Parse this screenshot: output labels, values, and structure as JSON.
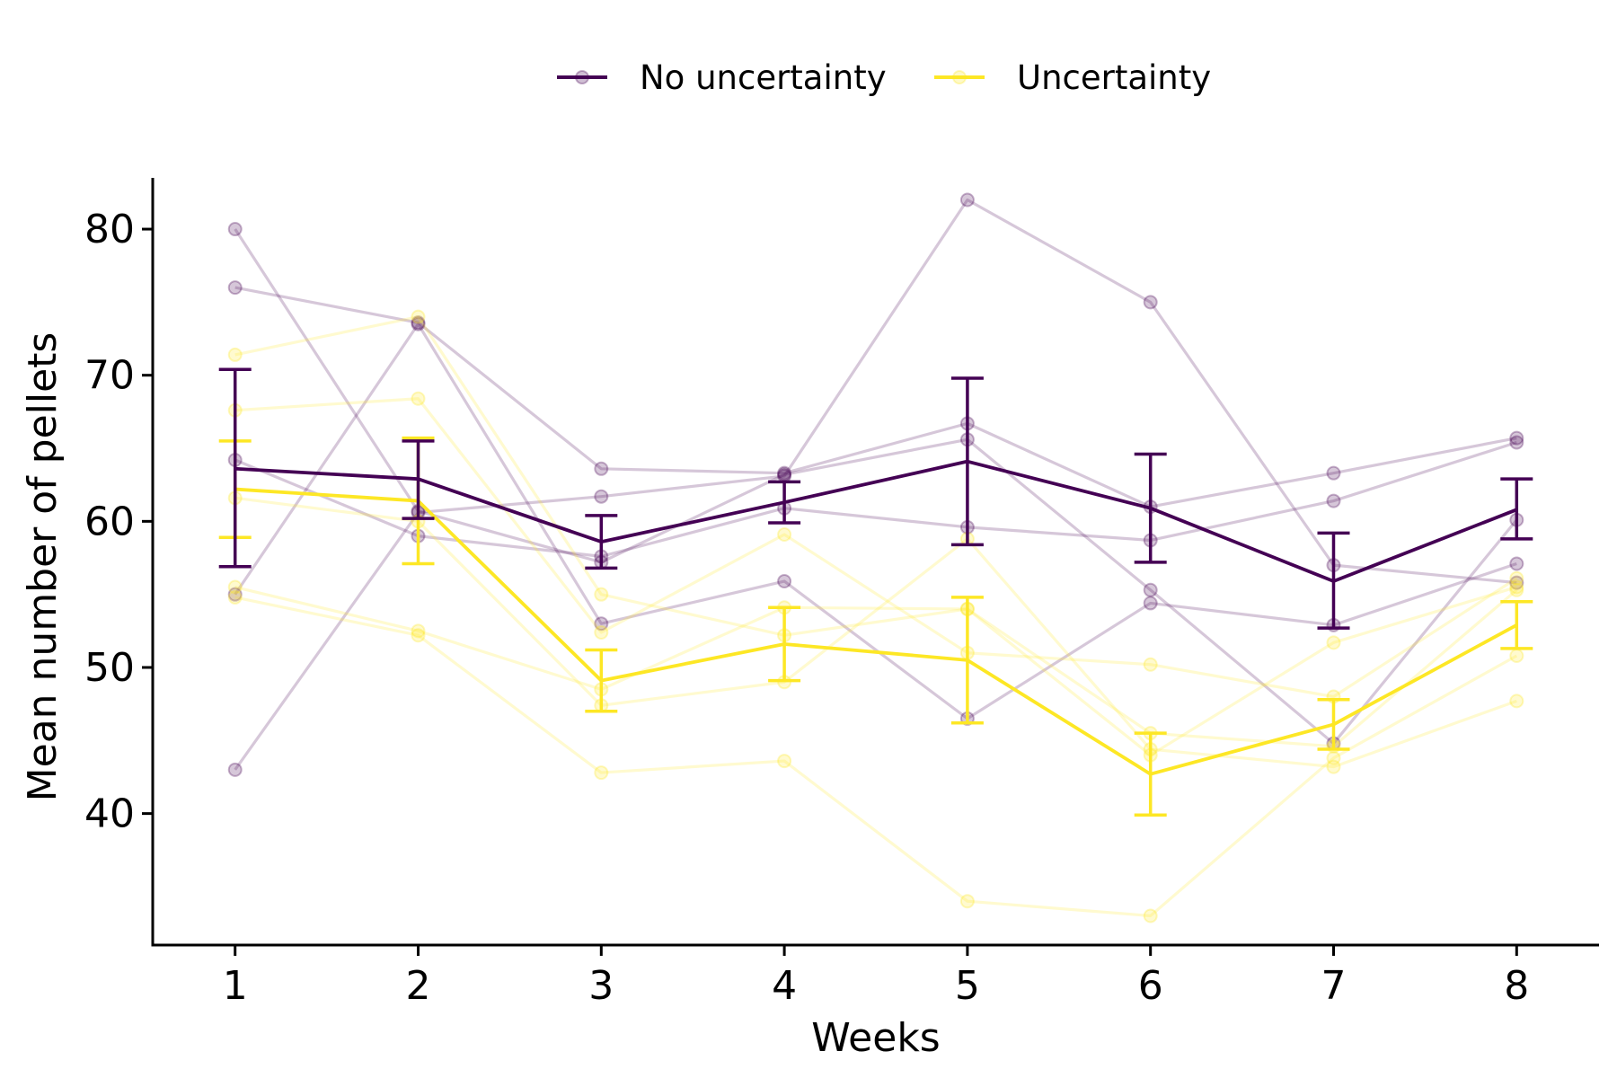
{
  "chart_data": {
    "type": "line",
    "xlabel": "Weeks",
    "ylabel": "Mean number of pellets",
    "x": [
      1,
      2,
      3,
      4,
      5,
      6,
      7,
      8
    ],
    "xticks": [
      "1",
      "2",
      "3",
      "4",
      "5",
      "6",
      "7",
      "8"
    ],
    "yticks": [
      40,
      50,
      60,
      70,
      80
    ],
    "xlim": [
      0.55,
      8.45
    ],
    "ylim": [
      31,
      84
    ],
    "legend": {
      "position": "top",
      "entries": [
        {
          "label": "No uncertainty",
          "color": "#440154"
        },
        {
          "label": "Uncertainty",
          "color": "#FDE725"
        }
      ]
    },
    "series": [
      {
        "name": "No uncertainty",
        "color": "#440154",
        "mean": [
          63.6,
          62.9,
          58.6,
          61.3,
          64.1,
          60.9,
          55.9,
          60.8
        ],
        "error_low": [
          56.9,
          60.2,
          56.8,
          59.9,
          58.4,
          57.2,
          52.7,
          58.8
        ],
        "error_high": [
          70.4,
          65.5,
          60.4,
          62.7,
          69.8,
          64.6,
          59.2,
          62.9
        ],
        "individuals": [
          [
            80.0,
            60.7,
            57.2,
            63.2,
            65.6,
            55.3,
            44.8,
            60.1
          ],
          [
            76.0,
            73.6,
            63.6,
            63.3,
            66.7,
            61.0,
            63.3,
            65.7
          ],
          [
            64.2,
            59.0,
            57.6,
            60.9,
            59.6,
            58.7,
            61.4,
            65.4
          ],
          [
            55.0,
            73.5,
            53.0,
            55.9,
            46.5,
            54.4,
            52.9,
            57.1
          ],
          [
            43.0,
            60.6,
            61.7,
            63.1,
            82.0,
            75.0,
            57.0,
            55.8
          ]
        ]
      },
      {
        "name": "Uncertainty",
        "color": "#FDE725",
        "mean": [
          62.2,
          61.4,
          49.1,
          51.6,
          50.5,
          42.7,
          46.1,
          52.9
        ],
        "error_low": [
          58.9,
          57.1,
          47.0,
          49.1,
          46.2,
          39.9,
          44.4,
          51.3
        ],
        "error_high": [
          65.5,
          65.7,
          51.2,
          54.1,
          54.8,
          45.5,
          47.8,
          54.5
        ],
        "individuals": [
          [
            71.4,
            74.0,
            55.0,
            52.2,
            54.0,
            44.0,
            51.7,
            55.5
          ],
          [
            67.6,
            68.4,
            52.4,
            59.1,
            51.0,
            50.2,
            48.0,
            56.1
          ],
          [
            61.6,
            60.0,
            47.4,
            49.0,
            58.8,
            44.4,
            43.2,
            47.7
          ],
          [
            55.5,
            52.5,
            48.5,
            54.1,
            54.0,
            45.5,
            44.6,
            55.3
          ],
          [
            54.8,
            52.2,
            42.8,
            43.6,
            34.0,
            33.0,
            43.8,
            50.8
          ]
        ]
      }
    ]
  }
}
